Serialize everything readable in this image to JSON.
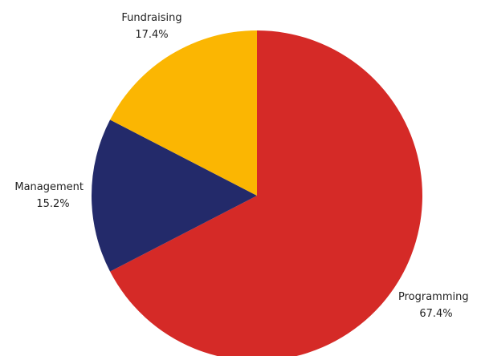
{
  "chart_data": {
    "type": "pie",
    "slices": [
      {
        "label": "Programming",
        "percent_label": "67.4%",
        "value": 67.4,
        "color": "#d52a27"
      },
      {
        "label": "Management",
        "percent_label": "15.2%",
        "value": 15.2,
        "color": "#232a6a"
      },
      {
        "label": "Fundraising",
        "percent_label": "17.4%",
        "value": 17.4,
        "color": "#fbb602"
      }
    ]
  }
}
